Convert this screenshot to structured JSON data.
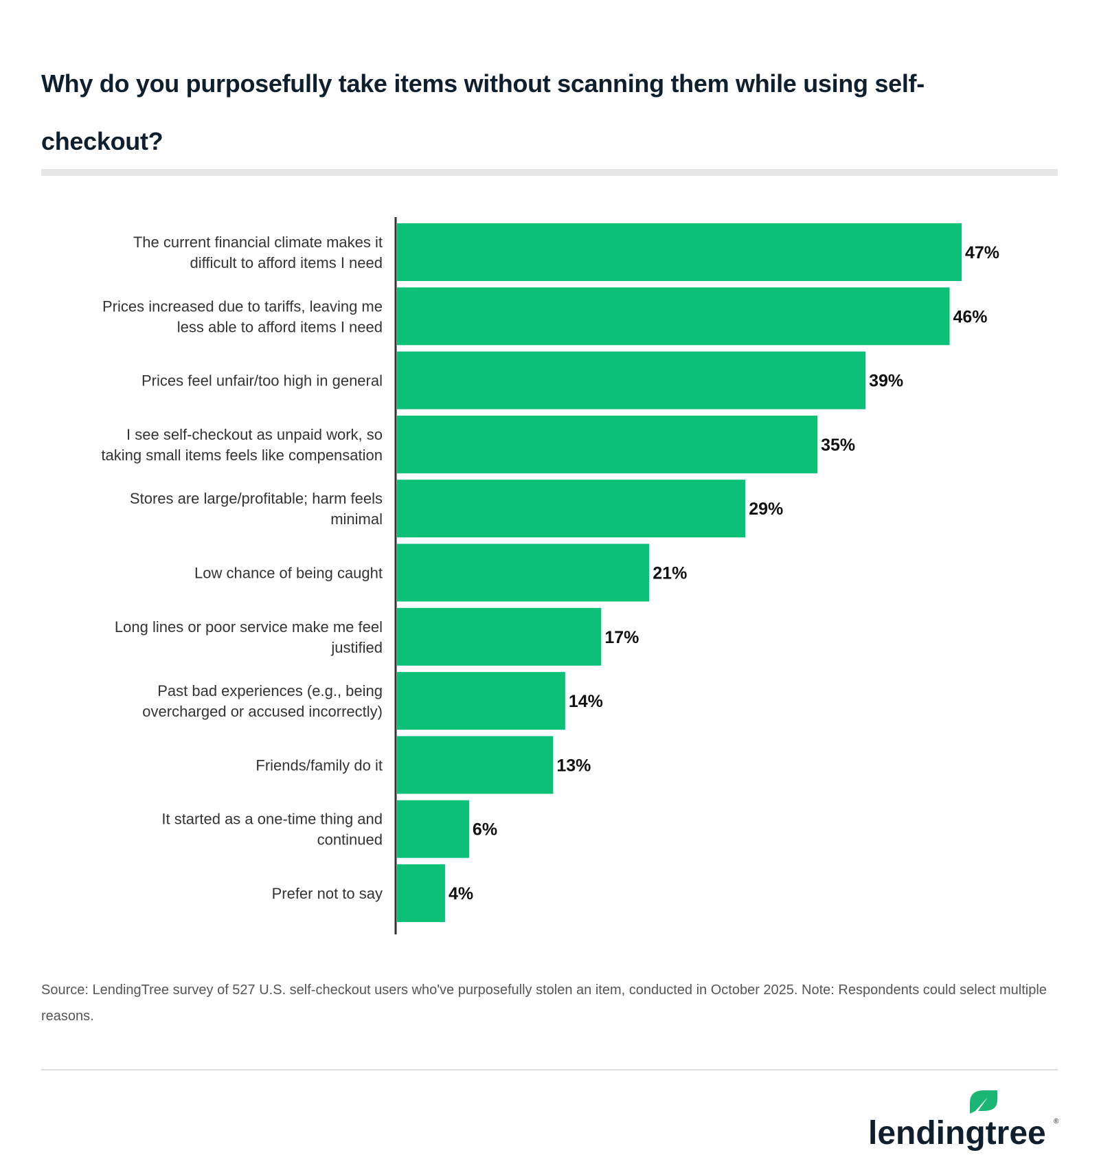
{
  "title": "Why do you purposefully take items without scanning them while using self-checkout?",
  "chart_data": {
    "type": "bar",
    "orientation": "horizontal",
    "categories": [
      [
        "The current financial climate makes it",
        "difficult to afford items I need"
      ],
      [
        "Prices increased due to tariffs, leaving me",
        "less able to afford items I need"
      ],
      [
        "Prices feel unfair/too high in general"
      ],
      [
        "I see self-checkout as unpaid work, so",
        "taking small items feels like compensation"
      ],
      [
        "Stores are large/profitable; harm feels",
        "minimal"
      ],
      [
        "Low chance of being caught"
      ],
      [
        "Long lines or poor service make me feel",
        "justified"
      ],
      [
        "Past bad experiences (e.g., being",
        "overcharged or accused incorrectly)"
      ],
      [
        "Friends/family do it"
      ],
      [
        "It started as a one-time thing and",
        "continued"
      ],
      [
        "Prefer not to say"
      ]
    ],
    "values": [
      47,
      46,
      39,
      35,
      29,
      21,
      17,
      14,
      13,
      6,
      4
    ],
    "value_labels": [
      "47%",
      "46%",
      "39%",
      "35%",
      "29%",
      "21%",
      "17%",
      "14%",
      "13%",
      "6%",
      "4%"
    ],
    "xlim": [
      0,
      50
    ],
    "grid": false,
    "bar_color": "#0cc177"
  },
  "source": "Source: LendingTree survey of 527 U.S. self-checkout users who've purposefully stolen an item, conducted in October 2025. Note: Respondents could select multiple reasons.",
  "logo": {
    "text": "lendingtree",
    "color": "#0f1f2e",
    "leaf_color": "#1bb574"
  }
}
